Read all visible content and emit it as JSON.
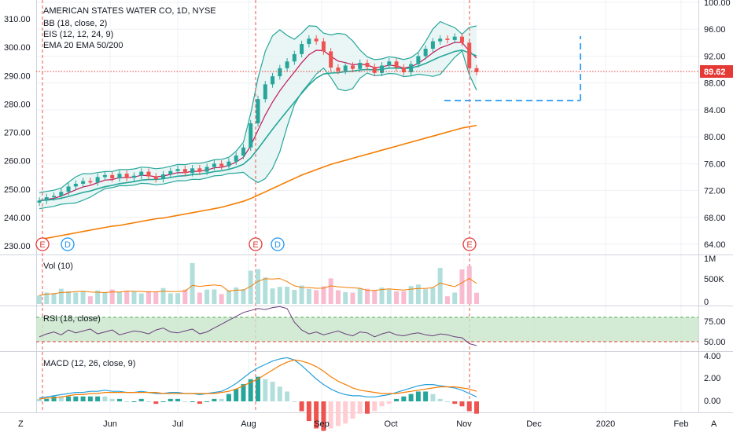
{
  "chart_data": {
    "type": "line",
    "title": "AMERICAN STATES WATER CO, 1D, NYSE",
    "indicators_main": [
      "BB (18, close, 2)",
      "EIS (12, 12, 24, 9)",
      "EMA 20 EMA 50/200"
    ],
    "left_axis_ticks": [
      "310.00",
      "300.00",
      "290.00",
      "280.00",
      "270.00",
      "260.00",
      "250.00",
      "240.00",
      "230.00"
    ],
    "right_axis_ticks": [
      "100.00",
      "96.00",
      "92.00",
      "88.00",
      "84.00",
      "80.00",
      "76.00",
      "72.00",
      "68.00",
      "64.00"
    ],
    "last_price": "89.62",
    "x_tick_labels": [
      "Jun",
      "Jul",
      "Aug",
      "Sep",
      "Oct",
      "Nov",
      "Dec",
      "2020",
      "Feb"
    ],
    "events": [
      {
        "marker": "E",
        "color": "#e53935"
      },
      {
        "marker": "D",
        "color": "#2196f3"
      },
      {
        "marker": "E",
        "color": "#e53935"
      },
      {
        "marker": "D",
        "color": "#2196f3"
      },
      {
        "marker": "E",
        "color": "#e53935"
      }
    ],
    "price_series": [
      70.5,
      71.0,
      71.2,
      71.8,
      72.6,
      73.0,
      73.4,
      73.2,
      74.0,
      74.3,
      73.8,
      74.5,
      73.9,
      74.2,
      74.8,
      74.1,
      73.7,
      74.4,
      74.9,
      75.2,
      74.6,
      75.3,
      74.8,
      75.5,
      76.0,
      75.6,
      76.3,
      77.2,
      78.4,
      82.0,
      85.6,
      87.8,
      89.0,
      90.2,
      91.2,
      92.3,
      93.8,
      94.6,
      94.2,
      92.7,
      90.3,
      89.8,
      90.6,
      90.1,
      91.0,
      90.4,
      89.5,
      90.6,
      91.2,
      90.3,
      89.6,
      90.8,
      92.0,
      93.1,
      94.2,
      94.6,
      94.4,
      94.9,
      94.0,
      90.2,
      89.62
    ],
    "ema_long_series": [
      64.8,
      64.9,
      65.1,
      65.3,
      65.5,
      65.7,
      65.9,
      66.1,
      66.3,
      66.5,
      66.7,
      66.8,
      67.0,
      67.2,
      67.4,
      67.6,
      67.8,
      67.9,
      68.1,
      68.3,
      68.5,
      68.7,
      68.9,
      69.1,
      69.3,
      69.5,
      69.8,
      70.1,
      70.4,
      70.8,
      71.3,
      71.8,
      72.3,
      72.8,
      73.3,
      73.8,
      74.3,
      74.7,
      75.1,
      75.5,
      75.9,
      76.2,
      76.5,
      76.8,
      77.1,
      77.4,
      77.7,
      78.0,
      78.3,
      78.6,
      78.9,
      79.2,
      79.5,
      79.8,
      80.1,
      80.4,
      80.7,
      81.0,
      81.3,
      81.5,
      81.7
    ],
    "volume_label": "Vol (10)",
    "volume_ticks": [
      "1M",
      "500K",
      "0"
    ],
    "rsi_label": "RSI (18, close)",
    "rsi_ticks": [
      "75.00",
      "50.00"
    ],
    "rsi_series": [
      55,
      58,
      60,
      57,
      62,
      59,
      61,
      63,
      58,
      60,
      62,
      57,
      59,
      61,
      60,
      58,
      62,
      64,
      60,
      59,
      61,
      63,
      58,
      60,
      64,
      68,
      72,
      76,
      80,
      82,
      84,
      83,
      85,
      86,
      84,
      70,
      62,
      58,
      60,
      57,
      59,
      61,
      58,
      56,
      60,
      59,
      55,
      58,
      60,
      57,
      56,
      58,
      59,
      57,
      56,
      58,
      57,
      55,
      54,
      48,
      46
    ],
    "macd_label": "MACD (12, 26, close, 9)",
    "macd_ticks": [
      "4.00",
      "2.00",
      "0.00"
    ],
    "macd_series": [
      0.3,
      0.4,
      0.5,
      0.6,
      0.7,
      0.8,
      0.8,
      0.9,
      0.9,
      1.0,
      0.9,
      0.9,
      0.8,
      0.8,
      0.9,
      0.8,
      0.7,
      0.7,
      0.8,
      0.8,
      0.7,
      0.7,
      0.6,
      0.7,
      0.8,
      0.9,
      1.2,
      1.6,
      2.1,
      2.6,
      3.0,
      3.3,
      3.6,
      3.8,
      3.9,
      3.7,
      3.2,
      2.6,
      2.0,
      1.5,
      1.1,
      0.8,
      0.6,
      0.5,
      0.5,
      0.4,
      0.4,
      0.5,
      0.6,
      0.8,
      1.0,
      1.2,
      1.4,
      1.5,
      1.5,
      1.4,
      1.3,
      1.2,
      1.0,
      0.7,
      0.4
    ],
    "macd_signal_series": [
      0.2,
      0.3,
      0.3,
      0.4,
      0.5,
      0.6,
      0.6,
      0.7,
      0.7,
      0.8,
      0.8,
      0.8,
      0.8,
      0.8,
      0.8,
      0.8,
      0.8,
      0.7,
      0.7,
      0.7,
      0.7,
      0.7,
      0.7,
      0.7,
      0.7,
      0.8,
      0.9,
      1.1,
      1.4,
      1.7,
      2.0,
      2.4,
      2.8,
      3.2,
      3.5,
      3.7,
      3.6,
      3.4,
      3.1,
      2.7,
      2.2,
      1.8,
      1.5,
      1.2,
      1.0,
      0.9,
      0.8,
      0.7,
      0.7,
      0.7,
      0.8,
      0.9,
      1.0,
      1.1,
      1.2,
      1.3,
      1.3,
      1.3,
      1.2,
      1.1,
      0.9
    ]
  }
}
